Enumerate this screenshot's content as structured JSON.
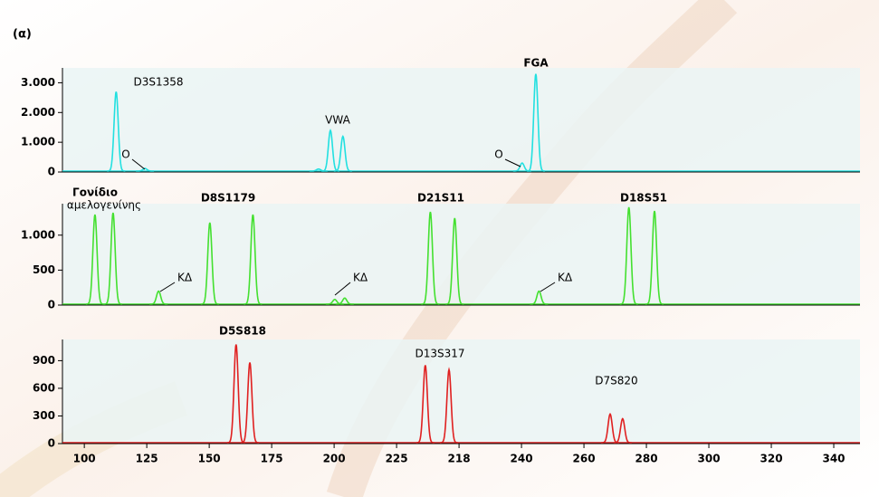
{
  "label": "(α)",
  "chart_data": [
    {
      "type": "line",
      "color": "#22e0e0",
      "xlim": [
        -0.35,
        12.42
      ],
      "ylim": [
        0,
        3500
      ],
      "yticks": [
        0,
        {
          "value": 1000,
          "label": "1.000"
        },
        {
          "value": 2000,
          "label": "2.000"
        },
        {
          "value": 3000,
          "label": "3.000"
        }
      ],
      "x": [
        0.51,
        0.97,
        3.75,
        3.94,
        4.14,
        7.01,
        7.23
      ],
      "values": [
        2700,
        120,
        100,
        1400,
        1200,
        300,
        3300
      ],
      "annotations": [
        "D3S1358",
        "O",
        "VWA",
        "O",
        "FGA"
      ]
    },
    {
      "type": "line",
      "color": "#44e030",
      "xlim": [
        -0.35,
        12.42
      ],
      "ylim": [
        0,
        1450
      ],
      "yticks": [
        0,
        500,
        {
          "value": 1000,
          "label": "1.000"
        }
      ],
      "x": [
        0.17,
        0.46,
        1.19,
        2.01,
        2.7,
        4.01,
        4.17,
        5.54,
        5.93,
        7.28,
        8.72,
        9.13
      ],
      "values": [
        1295,
        1320,
        200,
        1180,
        1295,
        80,
        100,
        1333,
        1244,
        200,
        1400,
        1346
      ],
      "annotations": [
        "Γονίδιο",
        "αμελογενίνης",
        "D8S1179",
        "D21S11",
        "D18S51",
        "ΚΔ",
        "ΚΔ",
        "ΚΔ"
      ]
    },
    {
      "type": "line",
      "color": "#e02020",
      "xlim": [
        -0.35,
        12.42
      ],
      "ylim": [
        0,
        1130
      ],
      "yticks": [
        0,
        300,
        600,
        900
      ],
      "xticks": [
        {
          "value": 0,
          "label": "100"
        },
        {
          "value": 1,
          "label": "125"
        },
        {
          "value": 2,
          "label": "150"
        },
        {
          "value": 3,
          "label": "175"
        },
        {
          "value": 4,
          "label": "200"
        },
        {
          "value": 5,
          "label": "225"
        },
        {
          "value": 6,
          "label": "218"
        },
        {
          "value": 7,
          "label": "240"
        },
        {
          "value": 8,
          "label": "260"
        },
        {
          "value": 9,
          "label": "280"
        },
        {
          "value": 10,
          "label": "300"
        },
        {
          "value": 11,
          "label": "320"
        },
        {
          "value": 12,
          "label": "340"
        }
      ],
      "x": [
        2.43,
        2.65,
        5.46,
        5.84,
        8.42,
        8.62
      ],
      "values": [
        1076,
        880,
        851,
        802,
        320,
        270
      ],
      "annotations": [
        "D5S818",
        "D13S317",
        "D7S820"
      ]
    }
  ]
}
